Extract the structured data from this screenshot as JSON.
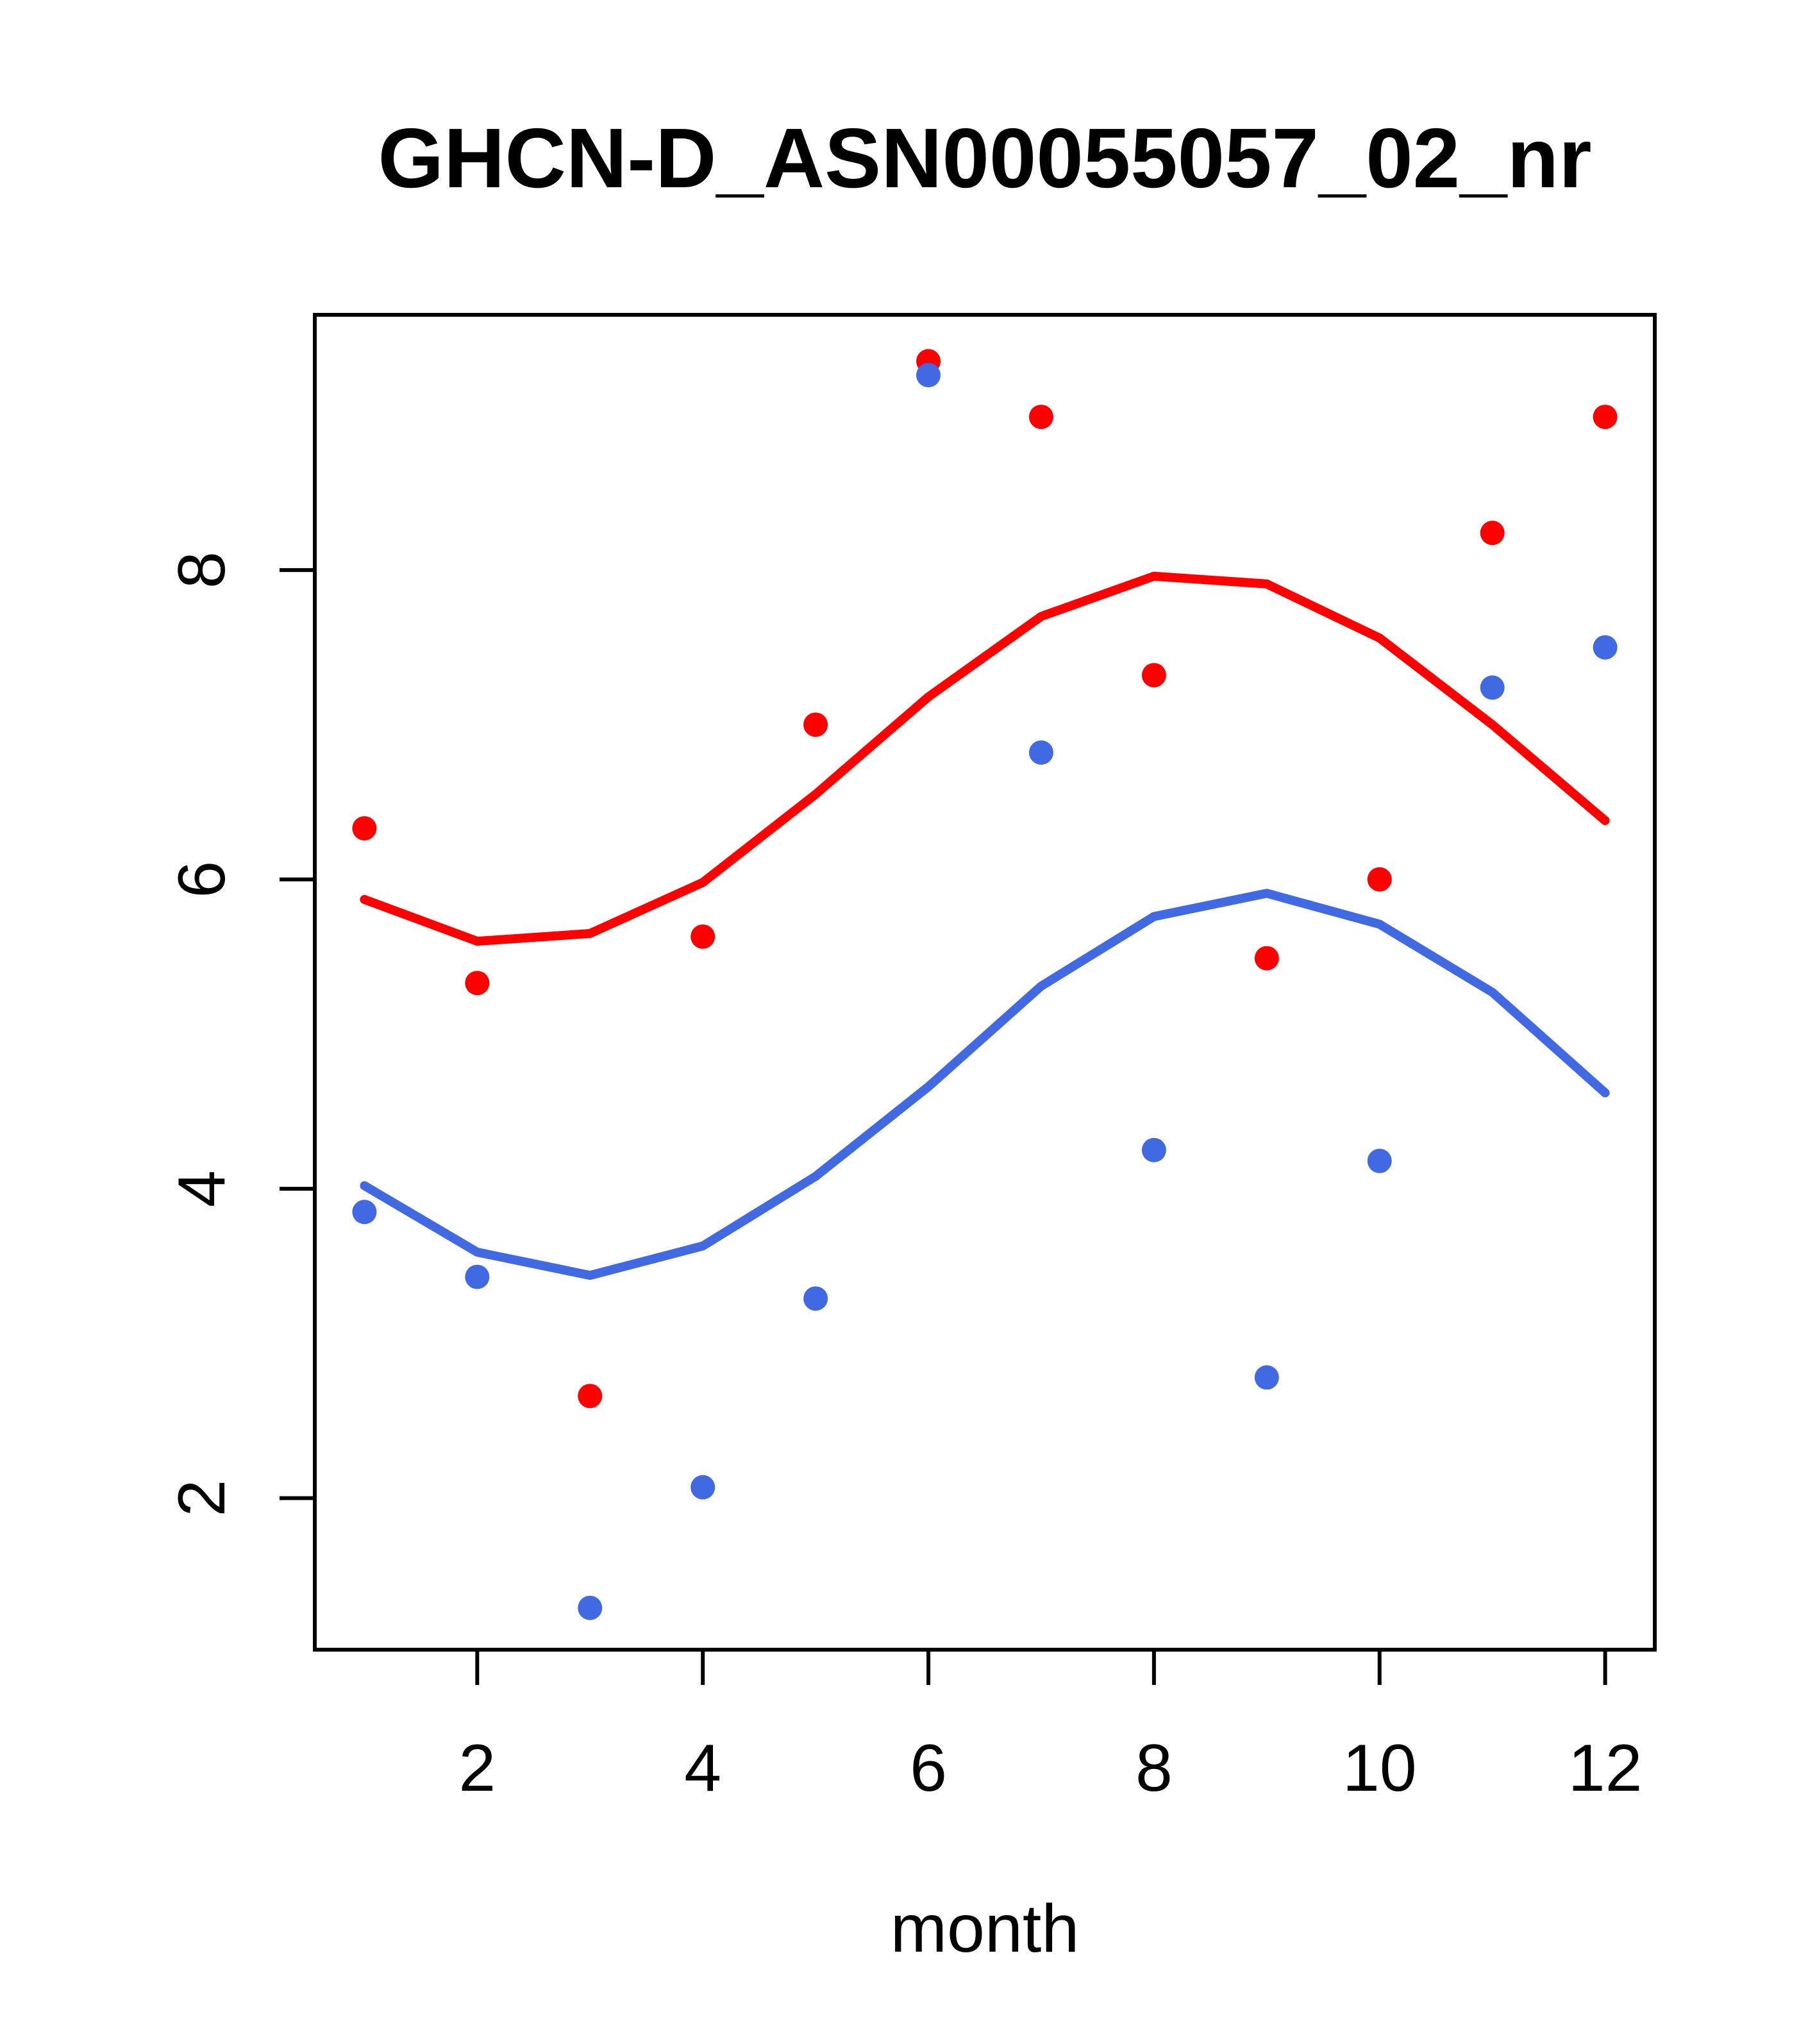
{
  "chart_data": {
    "type": "scatter",
    "title": "GHCN-D_ASN00055057_02_nr",
    "xlabel": "month",
    "ylabel": "",
    "x": [
      1,
      2,
      3,
      4,
      5,
      6,
      7,
      8,
      9,
      10,
      11,
      12
    ],
    "x_ticks": [
      2,
      4,
      6,
      8,
      10,
      12
    ],
    "y_ticks": [
      2,
      4,
      6,
      8
    ],
    "xlim": [
      0.56,
      12.44
    ],
    "ylim": [
      1.02,
      9.65
    ],
    "grid": false,
    "legend": "none",
    "colors": {
      "red": "#FF0000",
      "blue": "#4169E1",
      "axis": "#000000"
    },
    "series": [
      {
        "name": "red-smooth-line",
        "type": "line",
        "color_key": "red",
        "values": [
          5.87,
          5.6,
          5.65,
          5.98,
          6.55,
          7.18,
          7.7,
          7.96,
          7.91,
          7.56,
          7.0,
          6.38
        ]
      },
      {
        "name": "blue-smooth-line",
        "type": "line",
        "color_key": "blue",
        "values": [
          4.02,
          3.59,
          3.44,
          3.63,
          4.08,
          4.66,
          5.31,
          5.76,
          5.91,
          5.71,
          5.27,
          4.62
        ]
      },
      {
        "name": "red-points",
        "type": "points",
        "color_key": "red",
        "values": [
          6.33,
          5.33,
          2.66,
          5.63,
          7.0,
          9.35,
          8.99,
          7.32,
          5.49,
          6.0,
          8.24,
          8.99
        ]
      },
      {
        "name": "blue-points",
        "type": "points",
        "color_key": "blue",
        "values": [
          3.85,
          3.43,
          1.29,
          2.07,
          3.29,
          9.26,
          6.82,
          4.25,
          2.78,
          4.18,
          7.24,
          7.5
        ]
      }
    ]
  }
}
